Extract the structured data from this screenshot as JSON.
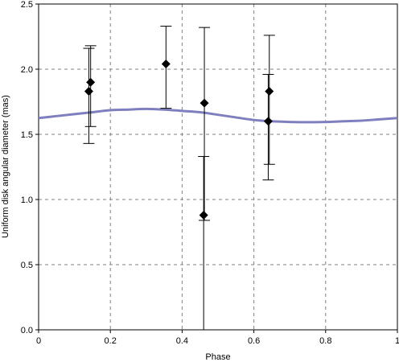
{
  "chart_data": {
    "type": "scatter",
    "xlabel": "Phase",
    "ylabel": "Uniform disk angular diameter (mas)",
    "xlim": [
      0,
      1
    ],
    "ylim": [
      0,
      2.5
    ],
    "x_ticks": [
      0,
      0.2,
      0.4,
      0.6,
      0.8,
      1
    ],
    "x_tick_labels": [
      "0",
      "0.2",
      "0.4",
      "0.6",
      "0.8",
      "1"
    ],
    "y_ticks": [
      0,
      0.5,
      1,
      1.5,
      2,
      2.5
    ],
    "y_tick_labels": [
      "0.0",
      "0.5",
      "1.0",
      "1.5",
      "2.0",
      "2.5"
    ],
    "grid": "dashed",
    "points": [
      {
        "x": 0.14,
        "y": 1.83,
        "y_low": 1.43,
        "y_high": 2.16
      },
      {
        "x": 0.145,
        "y": 1.9,
        "y_low": 1.56,
        "y_high": 2.18
      },
      {
        "x": 0.355,
        "y": 2.04,
        "y_low": 1.7,
        "y_high": 2.33
      },
      {
        "x": 0.462,
        "y": 1.74,
        "y_low": 0.84,
        "y_high": 2.32
      },
      {
        "x": 0.46,
        "y": 0.88,
        "y_low": 0.0,
        "y_high": 1.33
      },
      {
        "x": 0.64,
        "y": 1.6,
        "y_low": 1.15,
        "y_high": 1.96
      },
      {
        "x": 0.643,
        "y": 1.83,
        "y_low": 1.27,
        "y_high": 2.26
      }
    ],
    "curve": {
      "x": [
        0,
        0.05,
        0.1,
        0.15,
        0.2,
        0.25,
        0.3,
        0.35,
        0.4,
        0.45,
        0.5,
        0.55,
        0.6,
        0.65,
        0.7,
        0.75,
        0.8,
        0.85,
        0.9,
        0.95,
        1
      ],
      "y": [
        1.625,
        1.64,
        1.655,
        1.67,
        1.685,
        1.69,
        1.695,
        1.69,
        1.68,
        1.67,
        1.65,
        1.63,
        1.61,
        1.6,
        1.595,
        1.593,
        1.595,
        1.6,
        1.605,
        1.615,
        1.625
      ]
    },
    "colors": {
      "curve": "#7f7fbf",
      "points": "#000000",
      "grid": "#808080"
    }
  }
}
